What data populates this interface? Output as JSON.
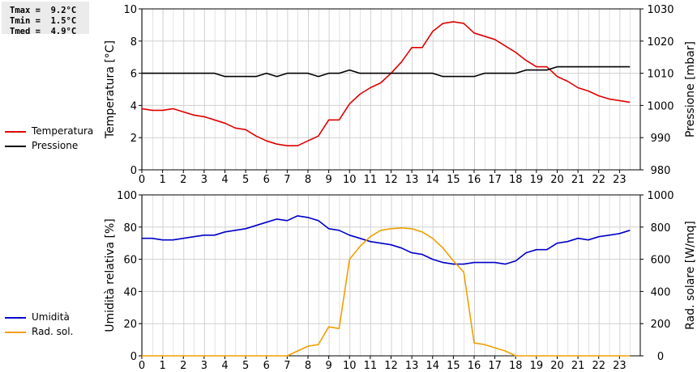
{
  "stats": {
    "tmax": "Tmax =  9.2°C",
    "tmin": "Tmin =  1.5°C",
    "tmed": "Tmed =  4.9°C"
  },
  "colors": {
    "temperatura": "#e00000",
    "pressione": "#000000",
    "umidita": "#0000c8",
    "rad_sol": "#f0a000",
    "grid": "#d0d0d0"
  },
  "chart_data": [
    {
      "type": "line",
      "title": "",
      "xlabel": "",
      "x_ticks": [
        "0",
        "1",
        "2",
        "3",
        "4",
        "5",
        "6",
        "7",
        "8",
        "9",
        "10",
        "11",
        "12",
        "13",
        "14",
        "15",
        "16",
        "17",
        "18",
        "19",
        "20",
        "21",
        "22",
        "23"
      ],
      "xlim": [
        0,
        24
      ],
      "ylabel_left": "Temperatura [°C]",
      "ylim_left": [
        0,
        10
      ],
      "yticks_left": [
        "0",
        "2",
        "4",
        "6",
        "8",
        "10"
      ],
      "ylabel_right": "Pressione [mbar]",
      "ylim_right": [
        980,
        1030
      ],
      "yticks_right": [
        "980",
        "990",
        "1000",
        "1010",
        "1020",
        "1030"
      ],
      "legend": [
        "Temperatura",
        "Pressione"
      ],
      "grid": true,
      "series": [
        {
          "name": "Temperatura",
          "axis": "left",
          "x": [
            0,
            0.5,
            1,
            1.5,
            2,
            2.5,
            3,
            3.5,
            4,
            4.5,
            5,
            5.5,
            6,
            6.5,
            7,
            7.5,
            8,
            8.5,
            9,
            9.5,
            10,
            10.5,
            11,
            11.5,
            12,
            12.5,
            13,
            13.5,
            14,
            14.5,
            15,
            15.5,
            16,
            16.5,
            17,
            17.5,
            18,
            18.5,
            19,
            19.5,
            20,
            20.5,
            21,
            21.5,
            22,
            22.5,
            23,
            23.5
          ],
          "values": [
            3.8,
            3.7,
            3.7,
            3.8,
            3.6,
            3.4,
            3.3,
            3.1,
            2.9,
            2.6,
            2.5,
            2.1,
            1.8,
            1.6,
            1.5,
            1.5,
            1.8,
            2.1,
            3.1,
            3.1,
            4.1,
            4.7,
            5.1,
            5.4,
            6.0,
            6.7,
            7.6,
            7.6,
            8.6,
            9.1,
            9.2,
            9.1,
            8.5,
            8.3,
            8.1,
            7.7,
            7.3,
            6.8,
            6.4,
            6.4,
            5.8,
            5.5,
            5.1,
            4.9,
            4.6,
            4.4,
            4.3,
            4.2
          ]
        },
        {
          "name": "Pressione",
          "axis": "right",
          "x": [
            0,
            3.5,
            4,
            5,
            5.5,
            6,
            6.5,
            7,
            8,
            8.5,
            9,
            9.5,
            10,
            10.5,
            14,
            14.5,
            15,
            16,
            16.5,
            18,
            18.5,
            19.5,
            20,
            23.5
          ],
          "values": [
            1010,
            1010,
            1009,
            1009,
            1009,
            1010,
            1009,
            1010,
            1010,
            1009,
            1010,
            1010,
            1011,
            1010,
            1010,
            1009,
            1009,
            1009,
            1010,
            1010,
            1011,
            1011,
            1012,
            1012
          ]
        }
      ]
    },
    {
      "type": "line",
      "title": "",
      "xlabel": "",
      "x_ticks": [
        "0",
        "1",
        "2",
        "3",
        "4",
        "5",
        "6",
        "7",
        "8",
        "9",
        "10",
        "11",
        "12",
        "13",
        "14",
        "15",
        "16",
        "17",
        "18",
        "19",
        "20",
        "21",
        "22",
        "23"
      ],
      "xlim": [
        0,
        24
      ],
      "ylabel_left": "Umidità relativa [%]",
      "ylim_left": [
        0,
        100
      ],
      "yticks_left": [
        "0",
        "20",
        "40",
        "60",
        "80",
        "100"
      ],
      "ylabel_right": "Rad. solare [W/mq]",
      "ylim_right": [
        0,
        1000
      ],
      "yticks_right": [
        "0",
        "200",
        "400",
        "600",
        "800",
        "1000"
      ],
      "legend": [
        "Umidità",
        "Rad. sol."
      ],
      "grid": true,
      "series": [
        {
          "name": "Umidità",
          "axis": "left",
          "x": [
            0,
            0.5,
            1,
            1.5,
            2,
            2.5,
            3,
            3.5,
            4,
            4.5,
            5,
            5.5,
            6,
            6.5,
            7,
            7.5,
            8,
            8.5,
            9,
            9.5,
            10,
            10.5,
            11,
            11.5,
            12,
            12.5,
            13,
            13.5,
            14,
            14.5,
            15,
            15.5,
            16,
            16.5,
            17,
            17.5,
            18,
            18.5,
            19,
            19.5,
            20,
            20.5,
            21,
            21.5,
            22,
            22.5,
            23,
            23.5
          ],
          "values": [
            73,
            73,
            72,
            72,
            73,
            74,
            75,
            75,
            77,
            78,
            79,
            81,
            83,
            85,
            84,
            87,
            86,
            84,
            79,
            78,
            75,
            73,
            71,
            70,
            69,
            67,
            64,
            63,
            60,
            58,
            57,
            57,
            58,
            58,
            58,
            57,
            59,
            64,
            66,
            66,
            70,
            71,
            73,
            72,
            74,
            75,
            76,
            78
          ]
        },
        {
          "name": "Rad. sol.",
          "axis": "right",
          "x": [
            0,
            1,
            2,
            3,
            4,
            5,
            6,
            7,
            7.5,
            8,
            8.5,
            9,
            9.5,
            10,
            10.5,
            11,
            11.5,
            12,
            12.5,
            13,
            13.5,
            14,
            14.5,
            15,
            15.5,
            16,
            16.5,
            17,
            17.5,
            18,
            19,
            20,
            21,
            22,
            23,
            23.5
          ],
          "values": [
            0,
            0,
            0,
            0,
            0,
            0,
            0,
            0,
            30,
            60,
            70,
            180,
            170,
            600,
            680,
            740,
            780,
            790,
            795,
            790,
            770,
            730,
            670,
            590,
            520,
            80,
            70,
            50,
            30,
            0,
            0,
            0,
            0,
            0,
            0,
            0
          ]
        }
      ]
    }
  ]
}
